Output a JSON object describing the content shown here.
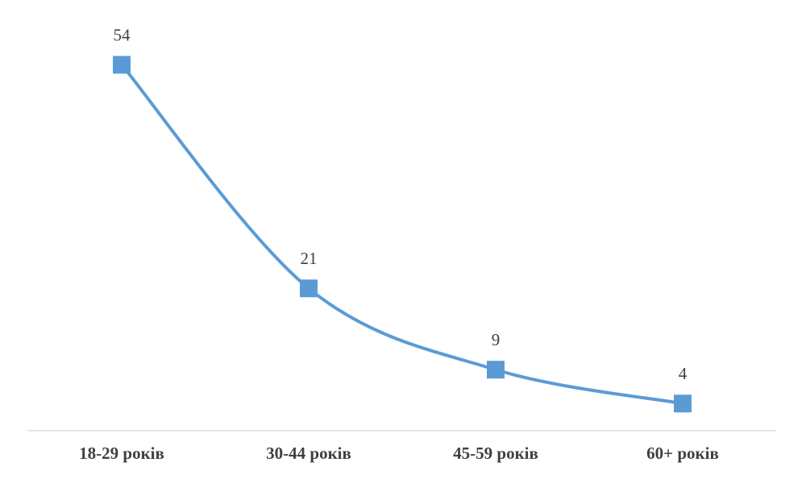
{
  "chart_data": {
    "type": "line",
    "smooth": true,
    "marker": "square",
    "categories": [
      "18-29 років",
      "30-44 років",
      "45-59 років",
      "60+ років"
    ],
    "values": [
      54,
      21,
      9,
      4
    ],
    "color": "#5b9bd5",
    "ylim": [
      0,
      60
    ]
  }
}
